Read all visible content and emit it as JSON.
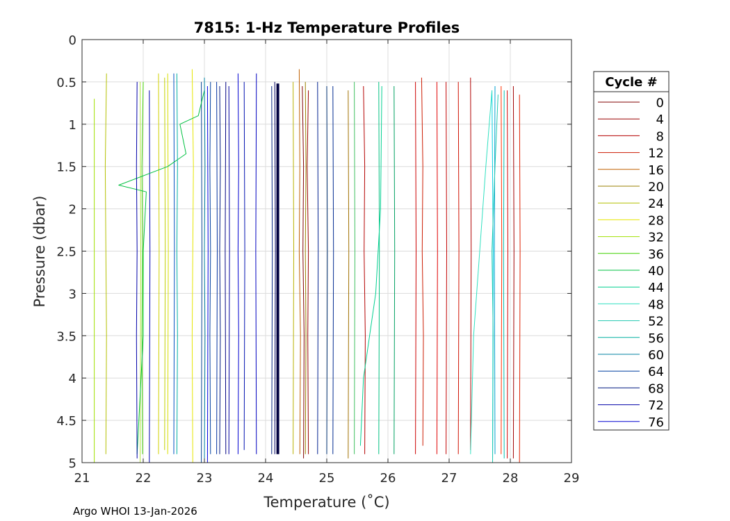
{
  "chart_data": {
    "type": "line",
    "title": "7815: 1-Hz Temperature Profiles",
    "xlabel": "Temperature (˚C)",
    "ylabel": "Pressure (dbar)",
    "xlim": [
      21,
      29
    ],
    "ylim": [
      0,
      5
    ],
    "y_reversed": true,
    "grid": true,
    "xticks": [
      "21",
      "22",
      "23",
      "24",
      "25",
      "26",
      "27",
      "28",
      "29"
    ],
    "yticks": [
      "0",
      "0.5",
      "1",
      "1.5",
      "2",
      "2.5",
      "3",
      "3.5",
      "4",
      "4.5",
      "5"
    ],
    "legend_title": "Cycle #",
    "legend_position": "right",
    "series": [
      {
        "name": "0",
        "color": "#800000",
        "x": [
          24.6,
          24.62,
          24.61,
          24.63,
          24.62
        ],
        "y": [
          0.55,
          1.5,
          2.5,
          3.5,
          4.95
        ]
      },
      {
        "name": "4",
        "color": "#9b0000",
        "x": [
          24.7,
          24.68,
          24.7,
          24.69,
          24.7
        ],
        "y": [
          0.6,
          1.5,
          2.5,
          3.5,
          4.9
        ]
      },
      {
        "name": "8",
        "color": "#b40000",
        "x": [
          25.6,
          25.62,
          25.61,
          25.63,
          25.62
        ],
        "y": [
          0.55,
          1.5,
          2.5,
          3.5,
          4.9
        ]
      },
      {
        "name": "12",
        "color": "#cc1a00",
        "x": [
          26.55,
          26.57,
          26.56,
          26.58,
          26.57
        ],
        "y": [
          0.45,
          1.5,
          2.5,
          3.5,
          4.8
        ]
      },
      {
        "name": "16",
        "color": "#c06000",
        "x": [
          24.55,
          24.56,
          24.55,
          24.57,
          24.56
        ],
        "y": [
          0.35,
          1.5,
          2.5,
          3.5,
          4.9
        ]
      },
      {
        "name": "20",
        "color": "#9a8000",
        "x": [
          24.65,
          24.66,
          24.65,
          24.66,
          24.65
        ],
        "y": [
          0.5,
          1.5,
          2.5,
          3.5,
          4.9
        ]
      },
      {
        "name": "24",
        "color": "#b4c000",
        "x": [
          21.4,
          21.38,
          21.39,
          21.4,
          21.39
        ],
        "y": [
          0.4,
          1.5,
          2.5,
          3.5,
          4.9
        ]
      },
      {
        "name": "28",
        "color": "#e6e600",
        "x": [
          22.8,
          22.82,
          22.81,
          22.8,
          22.81
        ],
        "y": [
          0.35,
          1.5,
          2.5,
          3.5,
          5.0
        ]
      },
      {
        "name": "32",
        "color": "#a0e000",
        "x": [
          21.2,
          21.2,
          21.2,
          21.2,
          21.2
        ],
        "y": [
          0.7,
          1.5,
          2.5,
          3.5,
          5.0
        ]
      },
      {
        "name": "36",
        "color": "#40d000",
        "x": [
          22.0,
          21.98,
          21.99,
          21.98,
          21.99
        ],
        "y": [
          0.5,
          1.5,
          2.5,
          3.5,
          4.9
        ]
      },
      {
        "name": "40",
        "color": "#00c040",
        "x": [
          23.0,
          22.9,
          22.6,
          22.7,
          22.4,
          21.6,
          22.05,
          22.0,
          22.0,
          21.9
        ],
        "y": [
          0.6,
          0.9,
          1.0,
          1.35,
          1.5,
          1.72,
          1.8,
          2.5,
          3.5,
          4.9
        ]
      },
      {
        "name": "44",
        "color": "#00d090",
        "x": [
          25.9,
          25.88,
          25.8,
          25.7,
          25.6,
          25.55
        ],
        "y": [
          0.55,
          2.0,
          3.0,
          3.5,
          4.0,
          4.8
        ]
      },
      {
        "name": "48",
        "color": "#30e0c0",
        "x": [
          27.7,
          27.6,
          27.5,
          27.4,
          27.35
        ],
        "y": [
          0.6,
          1.5,
          2.5,
          3.5,
          4.9
        ]
      },
      {
        "name": "52",
        "color": "#20c8b0",
        "x": [
          27.8,
          27.75,
          27.7,
          27.72,
          27.71
        ],
        "y": [
          0.65,
          1.5,
          2.5,
          3.5,
          5.0
        ]
      },
      {
        "name": "56",
        "color": "#00b0a0",
        "x": [
          22.55,
          22.56,
          22.55,
          22.56,
          22.55
        ],
        "y": [
          0.4,
          1.5,
          2.5,
          3.5,
          4.9
        ]
      },
      {
        "name": "60",
        "color": "#0080a0",
        "x": [
          23.0,
          23.01,
          23.0,
          23.01,
          23.0
        ],
        "y": [
          0.45,
          1.5,
          2.5,
          3.5,
          5.0
        ]
      },
      {
        "name": "64",
        "color": "#0040a0",
        "x": [
          23.1,
          23.09,
          23.1,
          23.09,
          23.1
        ],
        "y": [
          0.5,
          1.5,
          2.5,
          3.5,
          4.9
        ]
      },
      {
        "name": "68",
        "color": "#001880",
        "x": [
          23.25,
          23.26,
          23.25,
          23.26,
          23.25
        ],
        "y": [
          0.55,
          1.5,
          2.5,
          3.5,
          4.9
        ]
      },
      {
        "name": "72",
        "color": "#0000a8",
        "x": [
          21.9,
          21.89,
          21.9,
          21.89,
          21.9
        ],
        "y": [
          0.5,
          1.5,
          2.5,
          3.5,
          4.95
        ]
      },
      {
        "name": "76",
        "color": "#0000d0",
        "x": [
          23.55,
          23.56,
          23.55,
          23.56,
          23.55
        ],
        "y": [
          0.4,
          1.5,
          2.5,
          3.5,
          4.9
        ]
      }
    ],
    "extra_profiles": [
      {
        "color": "#000040",
        "width": 4,
        "x": [
          24.2,
          24.2,
          24.2
        ],
        "y": [
          0.52,
          2.5,
          4.9
        ]
      },
      {
        "color": "#000060",
        "width": 1,
        "x": [
          24.15,
          24.16,
          24.15
        ],
        "y": [
          0.5,
          2.5,
          4.9
        ]
      },
      {
        "color": "#0000c0",
        "width": 1,
        "x": [
          23.85,
          23.84,
          23.85
        ],
        "y": [
          0.4,
          2.5,
          4.9
        ]
      },
      {
        "color": "#0000a0",
        "width": 1,
        "x": [
          23.4,
          23.41,
          23.4
        ],
        "y": [
          0.55,
          2.5,
          4.9
        ]
      },
      {
        "color": "#0010b0",
        "width": 1,
        "x": [
          23.65,
          23.66,
          23.65
        ],
        "y": [
          0.5,
          2.5,
          4.85
        ]
      },
      {
        "color": "#002080",
        "width": 1,
        "x": [
          24.1,
          24.11,
          24.1
        ],
        "y": [
          0.55,
          2.5,
          4.9
        ]
      },
      {
        "color": "#0030a0",
        "width": 1,
        "x": [
          23.2,
          23.21,
          23.2
        ],
        "y": [
          0.5,
          2.5,
          4.9
        ]
      },
      {
        "color": "#004090",
        "width": 1,
        "x": [
          22.95,
          22.96,
          22.95
        ],
        "y": [
          0.5,
          2.5,
          5.0
        ]
      },
      {
        "color": "#000080",
        "width": 1,
        "x": [
          23.35,
          23.34,
          23.35
        ],
        "y": [
          0.5,
          2.5,
          4.9
        ]
      },
      {
        "color": "#0000e0",
        "width": 1,
        "x": [
          23.05,
          23.06,
          23.05
        ],
        "y": [
          0.55,
          2.5,
          5.0
        ]
      },
      {
        "color": "#0050c0",
        "width": 1,
        "x": [
          22.5,
          22.51,
          22.5
        ],
        "y": [
          0.4,
          2.5,
          4.9
        ]
      },
      {
        "color": "#0000b0",
        "width": 1,
        "x": [
          22.1,
          22.11,
          22.1
        ],
        "y": [
          0.6,
          2.5,
          5.0
        ]
      },
      {
        "color": "#00208f",
        "width": 1,
        "x": [
          24.85,
          24.86,
          24.85
        ],
        "y": [
          0.5,
          2.5,
          4.9
        ]
      },
      {
        "color": "#003070",
        "width": 1,
        "x": [
          25.0,
          25.01,
          25.0
        ],
        "y": [
          0.55,
          2.5,
          4.9
        ]
      },
      {
        "color": "#002a90",
        "width": 1,
        "x": [
          25.1,
          25.11,
          25.1
        ],
        "y": [
          0.55,
          2.5,
          4.9
        ]
      },
      {
        "color": "#d0d000",
        "width": 1,
        "x": [
          22.25,
          22.26,
          22.25
        ],
        "y": [
          0.4,
          2.5,
          4.9
        ]
      },
      {
        "color": "#c0d000",
        "width": 1,
        "x": [
          22.35,
          22.36,
          22.35
        ],
        "y": [
          0.45,
          2.5,
          4.85
        ]
      },
      {
        "color": "#b0e040",
        "width": 1,
        "x": [
          21.95,
          21.96,
          21.95
        ],
        "y": [
          0.5,
          2.5,
          5.0
        ]
      },
      {
        "color": "#d8e000",
        "width": 1,
        "x": [
          22.4,
          22.41,
          22.4
        ],
        "y": [
          0.4,
          2.5,
          4.9
        ]
      },
      {
        "color": "#b8b000",
        "width": 1,
        "x": [
          24.45,
          24.46,
          24.45
        ],
        "y": [
          0.5,
          2.5,
          4.9
        ]
      },
      {
        "color": "#a07000",
        "width": 1,
        "x": [
          25.35,
          25.36,
          25.35
        ],
        "y": [
          0.6,
          2.5,
          4.95
        ]
      },
      {
        "color": "#40c060",
        "width": 1,
        "x": [
          25.45,
          25.46,
          25.45
        ],
        "y": [
          0.5,
          2.5,
          4.9
        ]
      },
      {
        "color": "#00c080",
        "width": 1,
        "x": [
          25.85,
          25.86,
          25.85
        ],
        "y": [
          0.5,
          2.5,
          4.9
        ]
      },
      {
        "color": "#00a060",
        "width": 1,
        "x": [
          26.1,
          26.11,
          26.1
        ],
        "y": [
          0.55,
          2.5,
          4.9
        ]
      },
      {
        "color": "#cc0000",
        "width": 1,
        "x": [
          26.45,
          26.46,
          26.45
        ],
        "y": [
          0.5,
          2.5,
          4.9
        ]
      },
      {
        "color": "#e00000",
        "width": 1,
        "x": [
          26.8,
          26.81,
          26.8
        ],
        "y": [
          0.5,
          2.5,
          4.9
        ]
      },
      {
        "color": "#c00000",
        "width": 1,
        "x": [
          26.95,
          26.96,
          26.95
        ],
        "y": [
          0.5,
          2.5,
          4.9
        ]
      },
      {
        "color": "#d01000",
        "width": 1,
        "x": [
          27.15,
          27.16,
          27.15
        ],
        "y": [
          0.5,
          2.5,
          4.9
        ]
      },
      {
        "color": "#b00000",
        "width": 1,
        "x": [
          27.35,
          27.36,
          27.35
        ],
        "y": [
          0.45,
          2.5,
          4.85
        ]
      },
      {
        "color": "#d00000",
        "width": 1,
        "x": [
          27.95,
          27.96,
          27.95
        ],
        "y": [
          0.6,
          2.5,
          4.95
        ]
      },
      {
        "color": "#a00000",
        "width": 1,
        "x": [
          28.05,
          28.06,
          28.05
        ],
        "y": [
          0.55,
          2.5,
          4.95
        ]
      },
      {
        "color": "#e02000",
        "width": 1,
        "x": [
          28.15,
          28.16,
          28.15
        ],
        "y": [
          0.65,
          2.5,
          5.0
        ]
      },
      {
        "color": "#ff3000",
        "width": 1,
        "x": [
          27.85,
          27.86,
          27.85
        ],
        "y": [
          0.55,
          2.5,
          4.9
        ]
      },
      {
        "color": "#00d0e0",
        "width": 1,
        "x": [
          27.7,
          27.72,
          27.71
        ],
        "y": [
          0.6,
          2.5,
          5.0
        ]
      },
      {
        "color": "#00a0d0",
        "width": 1,
        "x": [
          27.75,
          27.74,
          27.75
        ],
        "y": [
          0.55,
          2.5,
          4.9
        ]
      },
      {
        "color": "#00c0b0",
        "width": 1,
        "x": [
          27.9,
          27.89,
          27.9
        ],
        "y": [
          0.6,
          2.5,
          4.95
        ]
      }
    ]
  },
  "footer": {
    "text": "Argo WHOI 13-Jan-2026"
  }
}
